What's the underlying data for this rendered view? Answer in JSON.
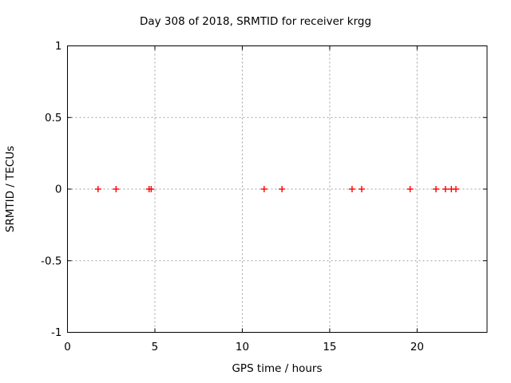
{
  "chart_data": {
    "type": "scatter",
    "title": "Day 308 of 2018, SRMTID for receiver krgg",
    "xlabel": "GPS time / hours",
    "ylabel": "SRMTID / TECUs",
    "xlim": [
      0,
      24
    ],
    "ylim": [
      -1,
      1
    ],
    "xticks": [
      0,
      5,
      10,
      15,
      20
    ],
    "xtick_labels": [
      "0",
      "5",
      "10",
      "15",
      "20"
    ],
    "yticks": [
      -1,
      -0.5,
      0,
      0.5,
      1
    ],
    "ytick_labels": [
      "-1",
      "-0.5",
      "0",
      "0.5",
      "1"
    ],
    "grid": true,
    "legend": "none",
    "marker": "plus",
    "series": [
      {
        "name": "SRMTID",
        "x": [
          1.75,
          2.78,
          4.67,
          4.79,
          11.25,
          12.27,
          16.28,
          16.83,
          19.6,
          21.08,
          21.62,
          21.96,
          22.22
        ],
        "y": [
          0,
          0,
          0,
          0,
          0,
          0,
          0,
          0,
          0,
          0,
          0,
          0,
          0
        ]
      }
    ],
    "colors": {
      "marker": "#ff0000",
      "grid": "#a0a0a0",
      "border": "#000000",
      "text": "#000000",
      "background": "#ffffff"
    }
  }
}
